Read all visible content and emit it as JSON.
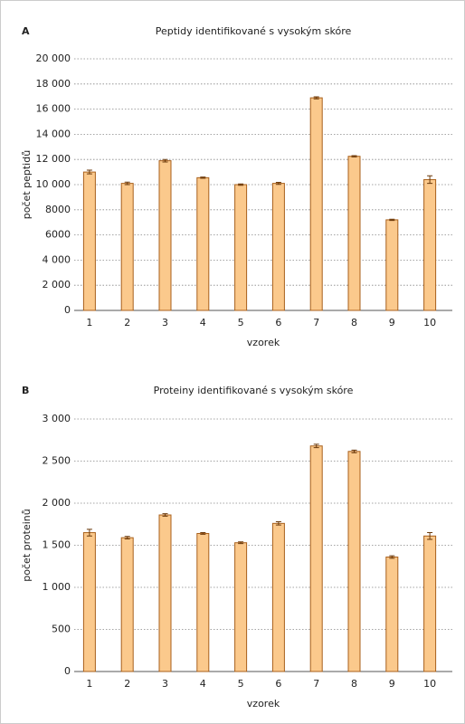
{
  "chart_data": [
    {
      "type": "bar",
      "panel": "A",
      "title": "Peptidy identifikované s vysokým skóre",
      "ylabel": "počet peptidů",
      "xlabel": "vzorek",
      "categories": [
        "1",
        "2",
        "3",
        "4",
        "5",
        "6",
        "7",
        "8",
        "9",
        "10"
      ],
      "series": [
        {
          "color": "#fbc98c",
          "values": [
            11000,
            10100,
            11900,
            10550,
            10000,
            10100,
            16900,
            12250,
            7200,
            10400
          ],
          "errors": [
            150,
            100,
            100,
            50,
            50,
            80,
            80,
            50,
            50,
            300
          ]
        }
      ],
      "ylim": [
        0,
        20000
      ],
      "yticks": [
        0,
        {
          "value": 2000,
          "label": "2 000"
        },
        {
          "value": 4000,
          "label": "4 000"
        },
        6000,
        8000,
        {
          "value": 10000,
          "label": "10 000"
        },
        {
          "value": 12000,
          "label": "12 000"
        },
        {
          "value": 14000,
          "label": "14 000"
        },
        {
          "value": 16000,
          "label": "16 000"
        },
        {
          "value": 18000,
          "label": "18 000"
        },
        {
          "value": 20000,
          "label": "20 000"
        }
      ],
      "grid": true
    },
    {
      "type": "bar",
      "panel": "B",
      "title": "Proteiny identifikované s vysokým skóre",
      "ylabel": "počet proteinů",
      "xlabel": "vzorek",
      "categories": [
        "1",
        "2",
        "3",
        "4",
        "5",
        "6",
        "7",
        "8",
        "9",
        "10"
      ],
      "series": [
        {
          "color": "#fbc98c",
          "values": [
            1650,
            1590,
            1860,
            1640,
            1530,
            1760,
            2680,
            2615,
            1360,
            1610
          ],
          "errors": [
            40,
            15,
            15,
            10,
            10,
            20,
            20,
            15,
            15,
            40
          ]
        }
      ],
      "ylim": [
        0,
        3000
      ],
      "yticks": [
        0,
        500,
        {
          "value": 1000,
          "label": "1 000"
        },
        {
          "value": 1500,
          "label": "1 500"
        },
        {
          "value": 2000,
          "label": "2 000"
        },
        {
          "value": 2500,
          "label": "2 500"
        },
        {
          "value": 3000,
          "label": "3 000"
        }
      ],
      "grid": true
    }
  ]
}
